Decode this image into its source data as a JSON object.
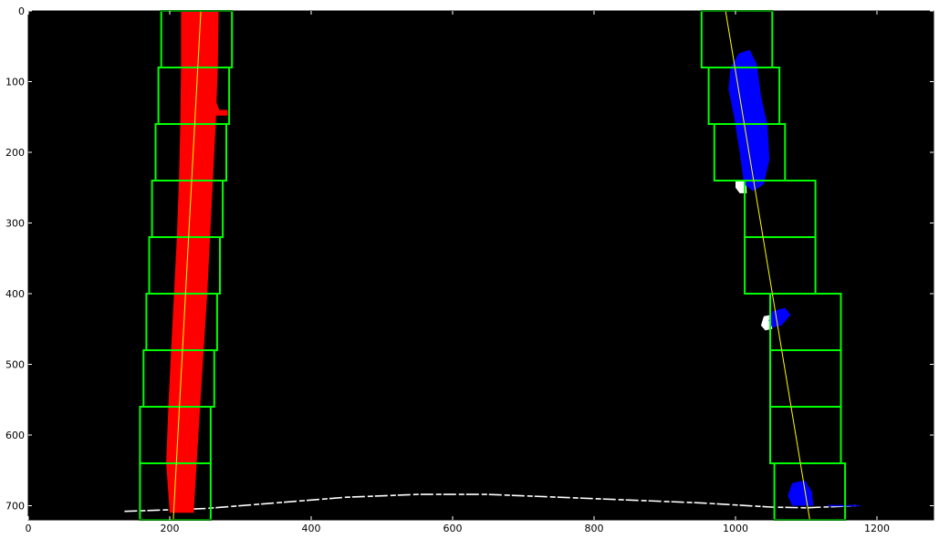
{
  "chart_data": {
    "type": "image",
    "background_color": "#000000",
    "x_ticks": [
      0,
      200,
      400,
      600,
      800,
      1000,
      1200
    ],
    "y_ticks": [
      0,
      100,
      200,
      300,
      400,
      500,
      600,
      700
    ],
    "xlim": [
      0,
      1280
    ],
    "ylim": [
      720,
      0
    ],
    "grid": false,
    "colors": {
      "window": "#00ff00",
      "left_lane": "#ff0000",
      "right_lane": "#0000ff",
      "fit": "#ffff00",
      "noise": "#ffffff"
    },
    "left_windows": [
      {
        "x0": 188,
        "x1": 288,
        "y0": 0,
        "y1": 80
      },
      {
        "x0": 184,
        "x1": 284,
        "y0": 80,
        "y1": 160
      },
      {
        "x0": 180,
        "x1": 280,
        "y0": 160,
        "y1": 240
      },
      {
        "x0": 175,
        "x1": 275,
        "y0": 240,
        "y1": 320
      },
      {
        "x0": 171,
        "x1": 271,
        "y0": 320,
        "y1": 400
      },
      {
        "x0": 167,
        "x1": 267,
        "y0": 400,
        "y1": 480
      },
      {
        "x0": 163,
        "x1": 263,
        "y0": 480,
        "y1": 560
      },
      {
        "x0": 158,
        "x1": 258,
        "y0": 560,
        "y1": 640
      },
      {
        "x0": 158,
        "x1": 258,
        "y0": 640,
        "y1": 720
      }
    ],
    "right_windows": [
      {
        "x0": 952,
        "x1": 1052,
        "y0": 0,
        "y1": 80
      },
      {
        "x0": 962,
        "x1": 1062,
        "y0": 80,
        "y1": 160
      },
      {
        "x0": 970,
        "x1": 1070,
        "y0": 160,
        "y1": 240
      },
      {
        "x0": 1013,
        "x1": 1113,
        "y0": 240,
        "y1": 320
      },
      {
        "x0": 1013,
        "x1": 1113,
        "y0": 320,
        "y1": 400
      },
      {
        "x0": 1049,
        "x1": 1149,
        "y0": 400,
        "y1": 480
      },
      {
        "x0": 1049,
        "x1": 1149,
        "y0": 480,
        "y1": 560
      },
      {
        "x0": 1049,
        "x1": 1149,
        "y0": 560,
        "y1": 640
      },
      {
        "x0": 1055,
        "x1": 1155,
        "y0": 640,
        "y1": 720
      }
    ],
    "left_fit": [
      [
        244,
        0
      ],
      [
        205,
        720
      ]
    ],
    "right_fit": [
      [
        986,
        0
      ],
      [
        1105,
        720
      ]
    ],
    "left_lane_points": [
      [
        216,
        0
      ],
      [
        269,
        0
      ],
      [
        268,
        80
      ],
      [
        265,
        160
      ],
      [
        261,
        240
      ],
      [
        257,
        320
      ],
      [
        253,
        400
      ],
      [
        248,
        480
      ],
      [
        243,
        560
      ],
      [
        238,
        640
      ],
      [
        234,
        710
      ],
      [
        200,
        710
      ],
      [
        195,
        640
      ],
      [
        198,
        560
      ],
      [
        202,
        480
      ],
      [
        206,
        400
      ],
      [
        210,
        320
      ],
      [
        213,
        240
      ],
      [
        215,
        160
      ],
      [
        216,
        80
      ]
    ],
    "left_lane_blob": [
      [
        255,
        100
      ],
      [
        270,
        140
      ],
      [
        282,
        140
      ],
      [
        282,
        148
      ],
      [
        264,
        148
      ],
      [
        252,
        120
      ]
    ],
    "right_lane_blob_top": [
      [
        1005,
        60
      ],
      [
        1020,
        55
      ],
      [
        1030,
        75
      ],
      [
        1036,
        120
      ],
      [
        1045,
        160
      ],
      [
        1048,
        210
      ],
      [
        1040,
        245
      ],
      [
        1025,
        255
      ],
      [
        1012,
        245
      ],
      [
        1006,
        200
      ],
      [
        998,
        150
      ],
      [
        990,
        110
      ],
      [
        993,
        80
      ]
    ],
    "right_lane_blob_mid": [
      [
        1052,
        425
      ],
      [
        1070,
        420
      ],
      [
        1078,
        430
      ],
      [
        1065,
        445
      ],
      [
        1052,
        448
      ],
      [
        1047,
        438
      ]
    ],
    "right_lane_blob_bottom": [
      [
        1080,
        668
      ],
      [
        1098,
        664
      ],
      [
        1108,
        680
      ],
      [
        1110,
        700
      ],
      [
        1080,
        700
      ],
      [
        1074,
        686
      ]
    ],
    "right_lane_dashes": [
      [
        1130,
        700
      ],
      [
        1175,
        700
      ]
    ],
    "noise_blobs": [
      [
        [
          1000,
          240
        ],
        [
          1015,
          240
        ],
        [
          1016,
          258
        ],
        [
          1006,
          258
        ],
        [
          1000,
          250
        ]
      ],
      [
        [
          1040,
          432
        ],
        [
          1050,
          430
        ],
        [
          1052,
          450
        ],
        [
          1042,
          452
        ],
        [
          1036,
          445
        ]
      ]
    ],
    "noise_curve": [
      [
        136,
        708
      ],
      [
        250,
        704
      ],
      [
        350,
        696
      ],
      [
        450,
        688
      ],
      [
        550,
        684
      ],
      [
        650,
        684
      ],
      [
        750,
        688
      ],
      [
        850,
        692
      ],
      [
        950,
        696
      ],
      [
        1050,
        702
      ],
      [
        1100,
        703
      ],
      [
        1170,
        700
      ]
    ]
  }
}
